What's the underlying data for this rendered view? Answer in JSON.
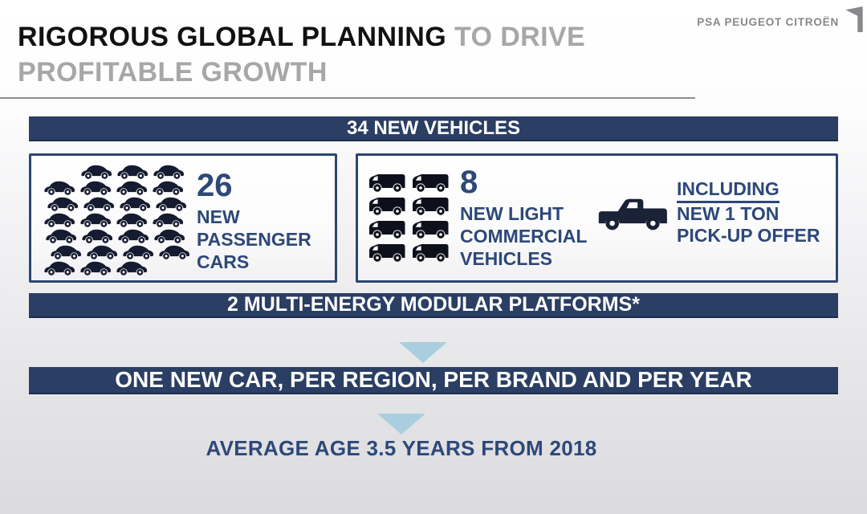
{
  "header": {
    "title_line1_black": "RIGOROUS GLOBAL PLANNING",
    "title_line1_gray": "TO DRIVE",
    "title_line2_gray": "PROFITABLE GROWTH",
    "logo_text": "PSA PEUGEOT CITROËN"
  },
  "banners": {
    "vehicles": "34 NEW VEHICLES",
    "platforms": "2 MULTI-ENERGY MODULAR PLATFORMS*",
    "cadence": "ONE NEW CAR, PER REGION, PER BRAND AND PER YEAR"
  },
  "passenger_cars": {
    "count": "26",
    "label_lines": [
      "NEW",
      "PASSENGER",
      "CARS"
    ],
    "grid": {
      "icon": "car-icon",
      "rows": [
        {
          "offset": 46,
          "count": 3
        },
        {
          "offset": 0,
          "count": 4
        },
        {
          "offset": 4,
          "count": 4
        },
        {
          "offset": 0,
          "count": 4
        },
        {
          "offset": 2,
          "count": 4
        },
        {
          "offset": 8,
          "count": 4
        },
        {
          "offset": 0,
          "count": 3
        }
      ]
    }
  },
  "commercial_vehicles": {
    "count": "8",
    "label_lines": [
      "NEW LIGHT",
      "COMMERCIAL",
      "VEHICLES"
    ],
    "grid": {
      "icon": "van-icon",
      "rows": [
        {
          "offset": 0,
          "count": 2
        },
        {
          "offset": 0,
          "count": 2
        },
        {
          "offset": 0,
          "count": 2
        },
        {
          "offset": 0,
          "count": 2
        }
      ]
    }
  },
  "pickup": {
    "line1": "INCLUDING",
    "line2": "NEW 1 TON",
    "line3": "PICK-UP OFFER"
  },
  "statement": "AVERAGE AGE 3.5 YEARS FROM 2018",
  "colors": {
    "navy": "#2b3e63",
    "box_border": "#2b4670",
    "text_navy": "#2d4878",
    "icon_dark": "#151b30",
    "van_dark": "#0d0f1a",
    "pickup_dark": "#1a2238",
    "arrow_blue": "#a9cfdf",
    "title_gray": "#a7a7a7",
    "logo_gray": "#87878c"
  }
}
